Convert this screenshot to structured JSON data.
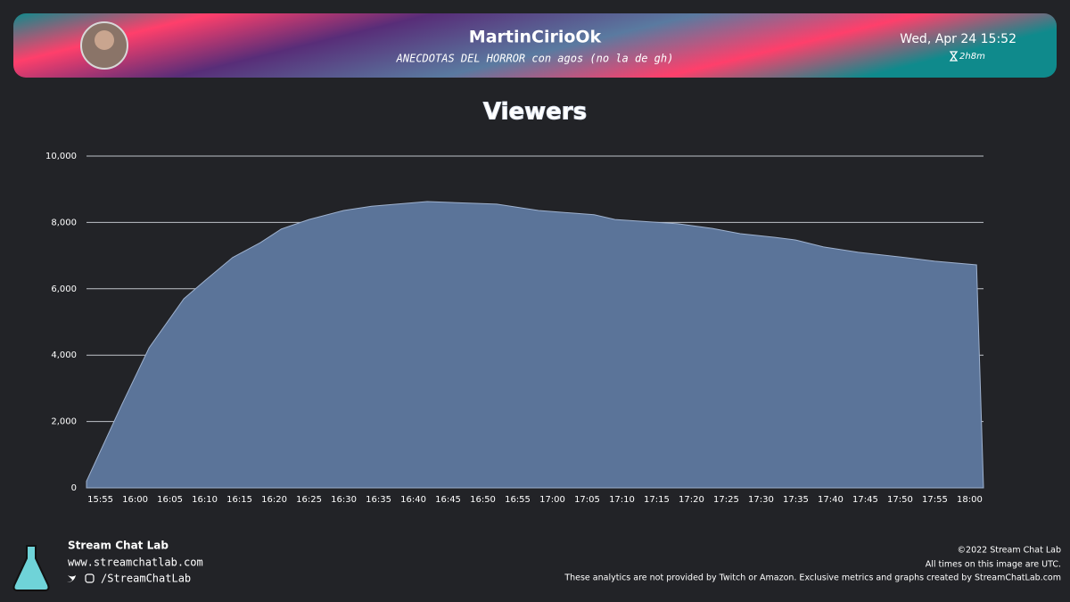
{
  "header": {
    "channel": "MartinCirioOk",
    "stream_title": "ANECDOTAS DEL HORROR con agos (no la de gh)",
    "date": "Wed, Apr 24 15:52",
    "duration": "2h8m"
  },
  "chart_data": {
    "type": "area",
    "title": "Viewers",
    "x": [
      "15:53",
      "15:58",
      "16:02",
      "16:07",
      "16:10",
      "16:14",
      "16:18",
      "16:21",
      "16:25",
      "16:30",
      "16:34",
      "16:42",
      "16:52",
      "16:58",
      "17:06",
      "17:09",
      "17:18",
      "17:23",
      "17:27",
      "17:32",
      "17:35",
      "17:39",
      "17:44",
      "17:50",
      "17:55",
      "18:01",
      "18:02"
    ],
    "values": [
      200,
      2470,
      4220,
      5700,
      6240,
      6940,
      7390,
      7800,
      8090,
      8360,
      8490,
      8630,
      8550,
      8360,
      8230,
      8090,
      7960,
      7820,
      7660,
      7550,
      7470,
      7260,
      7100,
      6960,
      6830,
      6720,
      0
    ],
    "color": "#5b7499",
    "xlim": [
      "15:53",
      "18:02"
    ],
    "xticks": [
      "15:55",
      "16:00",
      "16:05",
      "16:10",
      "16:15",
      "16:20",
      "16:25",
      "16:30",
      "16:35",
      "16:40",
      "16:45",
      "16:50",
      "16:55",
      "17:00",
      "17:05",
      "17:10",
      "17:15",
      "17:20",
      "17:25",
      "17:30",
      "17:35",
      "17:40",
      "17:45",
      "17:50",
      "17:55",
      "18:00"
    ],
    "ylim": [
      0,
      10000
    ],
    "yticks": [
      0,
      {
        "value": 2000,
        "label": "2,000"
      },
      {
        "value": 4000,
        "label": "4,000"
      },
      {
        "value": 6000,
        "label": "6,000"
      },
      {
        "value": 8000,
        "label": "8,000"
      },
      {
        "value": 10000,
        "label": "10,000"
      }
    ],
    "grid": true
  },
  "footer": {
    "brand": "Stream Chat Lab",
    "website": "www.streamchatlab.com",
    "social": "/StreamChatLab",
    "copyright": "©2022 Stream Chat Lab",
    "timezone_note": "All times on this image are UTC.",
    "disclaimer": "These analytics are not provided by Twitch or Amazon. Exclusive metrics and graphs created by StreamChatLab.com"
  }
}
